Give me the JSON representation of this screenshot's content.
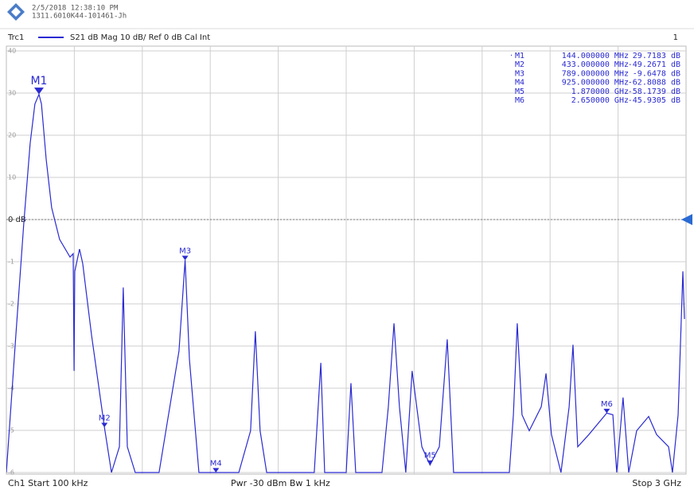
{
  "header": {
    "timestamp": "2/5/2018 12:38:10 PM",
    "device": "1311.6010K44-101461-Jh"
  },
  "chart_data": {
    "type": "line",
    "trace_info": "S21 dB Mag 10 dB/ Ref 0 dB Cal Int",
    "window": "1",
    "xlim": [
      0.1,
      3000
    ],
    "ylim": [
      -60,
      40
    ],
    "yticks": [
      40,
      30,
      20,
      10,
      {
        "value": 0,
        "label": "0 dB"
      },
      {
        "value": -10,
        "label": "-1"
      },
      {
        "value": -20,
        "label": "-2"
      },
      {
        "value": -30,
        "label": "-3"
      },
      {
        "value": -40,
        "label": "-4"
      },
      {
        "value": -50,
        "label": "-5"
      },
      {
        "value": -60,
        "label": "-6"
      }
    ],
    "grid": true,
    "reference_level": 0,
    "x": [
      0.1,
      42,
      77,
      105,
      126,
      144,
      155,
      176,
      200,
      235,
      281,
      295,
      299,
      302,
      323,
      337,
      376,
      433,
      464,
      499,
      516,
      534,
      569,
      674,
      710,
      762,
      789,
      808,
      850,
      1026,
      1078,
      1099,
      1120,
      1149,
      1359,
      1388,
      1405,
      1500,
      1521,
      1542,
      1658,
      1686,
      1711,
      1735,
      1763,
      1791,
      1834,
      1870,
      1911,
      1946,
      1974,
      2220,
      2238,
      2255,
      2276,
      2308,
      2361,
      2382,
      2406,
      2448,
      2484,
      2501,
      2522,
      2571,
      2650,
      2677,
      2694,
      2722,
      2747,
      2782,
      2835,
      2870,
      2923,
      2940,
      2965,
      2986,
      2993
    ],
    "series": [
      {
        "name": "Trc1",
        "color": "#2a2ad2",
        "values": [
          -60,
          -27.4,
          -0.9,
          18,
          27.4,
          29.7,
          27.4,
          14.2,
          2.8,
          -4.7,
          -8.9,
          -8.1,
          -35.9,
          -12.3,
          -7,
          -10.4,
          -27.4,
          -49.3,
          -60,
          -53.9,
          -16.1,
          -53.9,
          -60,
          -60,
          -48.2,
          -31.2,
          -9.6,
          -33.1,
          -60,
          -60,
          -50.1,
          -26.5,
          -50.1,
          -60,
          -60,
          -34,
          -60,
          -60,
          -38.8,
          -60,
          -60,
          -44.4,
          -24.6,
          -44.4,
          -60,
          -35.9,
          -53.9,
          -58.2,
          -53.9,
          -28.4,
          -60,
          -60,
          -46.3,
          -24.6,
          -46.3,
          -50.1,
          -44.4,
          -36.5,
          -51,
          -60,
          -44.4,
          -29.7,
          -53.9,
          -51,
          -45.9,
          -46.3,
          -60,
          -42.2,
          -60,
          -50.1,
          -46.7,
          -51,
          -53.9,
          -60,
          -46.3,
          -12.3,
          -23.6
        ]
      }
    ],
    "markers": [
      {
        "name": "M1",
        "frequency": {
          "value": 144,
          "label": "144.000000 MHz"
        },
        "level": {
          "value": 29.7183,
          "label": "29.7183 dB"
        }
      },
      {
        "name": "M2",
        "frequency": {
          "value": 433,
          "label": "433.000000 MHz"
        },
        "level": {
          "value": -49.2671,
          "label": "-49.2671 dB"
        }
      },
      {
        "name": "M3",
        "frequency": {
          "value": 789,
          "label": "789.000000 MHz"
        },
        "level": {
          "value": -9.6478,
          "label": "-9.6478 dB"
        }
      },
      {
        "name": "M4",
        "frequency": {
          "value": 925,
          "label": "925.000000 MHz"
        },
        "level": {
          "value": -62.8088,
          "label": "-62.8088 dB"
        }
      },
      {
        "name": "M5",
        "frequency": {
          "value": 1870,
          "label": "1.870000 GHz"
        },
        "level": {
          "value": -58.1739,
          "label": "-58.1739 dB"
        }
      },
      {
        "name": "M6",
        "frequency": {
          "value": 2650,
          "label": "2.650000 GHz"
        },
        "level": {
          "value": -45.9305,
          "label": "-45.9305 dB"
        }
      }
    ]
  },
  "footer": {
    "start": "Ch1 Start 100 kHz",
    "power": "Pwr -30 dBm Bw 1 kHz",
    "stop": "Stop 3 GHz"
  }
}
